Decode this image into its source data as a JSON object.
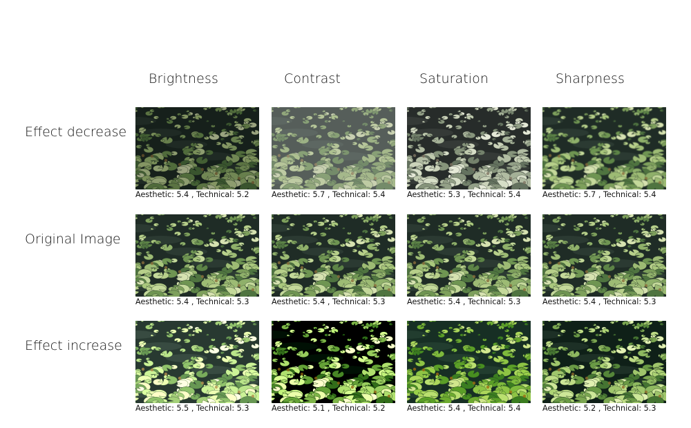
{
  "columns": [
    {
      "label": "Brightness"
    },
    {
      "label": "Contrast"
    },
    {
      "label": "Saturation"
    },
    {
      "label": "Sharpness"
    }
  ],
  "rows": [
    {
      "label": "Effect decrease",
      "cells": [
        {
          "caption": "Aesthetic: 5.4 , Technical: 5.2"
        },
        {
          "caption": "Aesthetic: 5.7 , Technical: 5.4"
        },
        {
          "caption": "Aesthetic: 5.3 , Technical: 5.4"
        },
        {
          "caption": "Aesthetic: 5.7 , Technical: 5.4"
        }
      ]
    },
    {
      "label": "Original Image",
      "cells": [
        {
          "caption": "Aesthetic: 5.4 , Technical: 5.3"
        },
        {
          "caption": "Aesthetic: 5.4 , Technical: 5.3"
        },
        {
          "caption": "Aesthetic: 5.4 , Technical: 5.3"
        },
        {
          "caption": "Aesthetic: 5.4 , Technical: 5.3"
        }
      ]
    },
    {
      "label": "Effect increase",
      "cells": [
        {
          "caption": "Aesthetic: 5.5 , Technical: 5.3"
        },
        {
          "caption": "Aesthetic: 5.1 , Technical: 5.2"
        },
        {
          "caption": "Aesthetic: 5.4 , Technical: 5.4"
        },
        {
          "caption": "Aesthetic: 5.2 , Technical: 5.3"
        }
      ]
    }
  ]
}
